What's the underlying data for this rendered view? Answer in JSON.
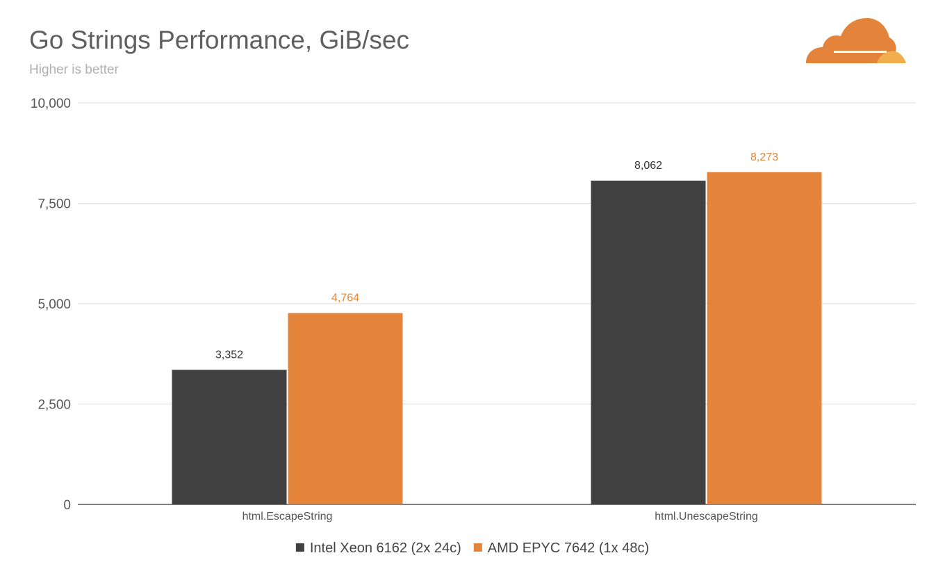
{
  "colors": {
    "series_0": "#404040",
    "series_1": "#e3843a",
    "logo_main": "#e3843a",
    "logo_light": "#f0ae4e",
    "grid": "#d9d9d9",
    "axis": "#555555"
  },
  "logo": {
    "icon": "cloudflare-cloud-icon"
  },
  "chart_data": {
    "type": "bar",
    "title": "Go Strings Performance, GiB/sec",
    "subtitle": "Higher is better",
    "categories": [
      "html.EscapeString",
      "html.UnescapeString"
    ],
    "series": [
      {
        "name": "Intel Xeon 6162 (2x 24c)",
        "values": [
          3352,
          8062
        ],
        "labels": [
          "3,352",
          "8,062"
        ]
      },
      {
        "name": "AMD EPYC 7642 (1x 48c)",
        "values": [
          4764,
          8273
        ],
        "labels": [
          "4,764",
          "8,273"
        ]
      }
    ],
    "ylim": [
      0,
      10000
    ],
    "yticks": [
      0,
      2500,
      5000,
      7500,
      10000
    ],
    "ytick_labels": [
      "0",
      "2,500",
      "5,000",
      "7,500",
      "10,000"
    ],
    "xlabel": "",
    "ylabel": "",
    "grid": true,
    "legend": "bottom"
  }
}
